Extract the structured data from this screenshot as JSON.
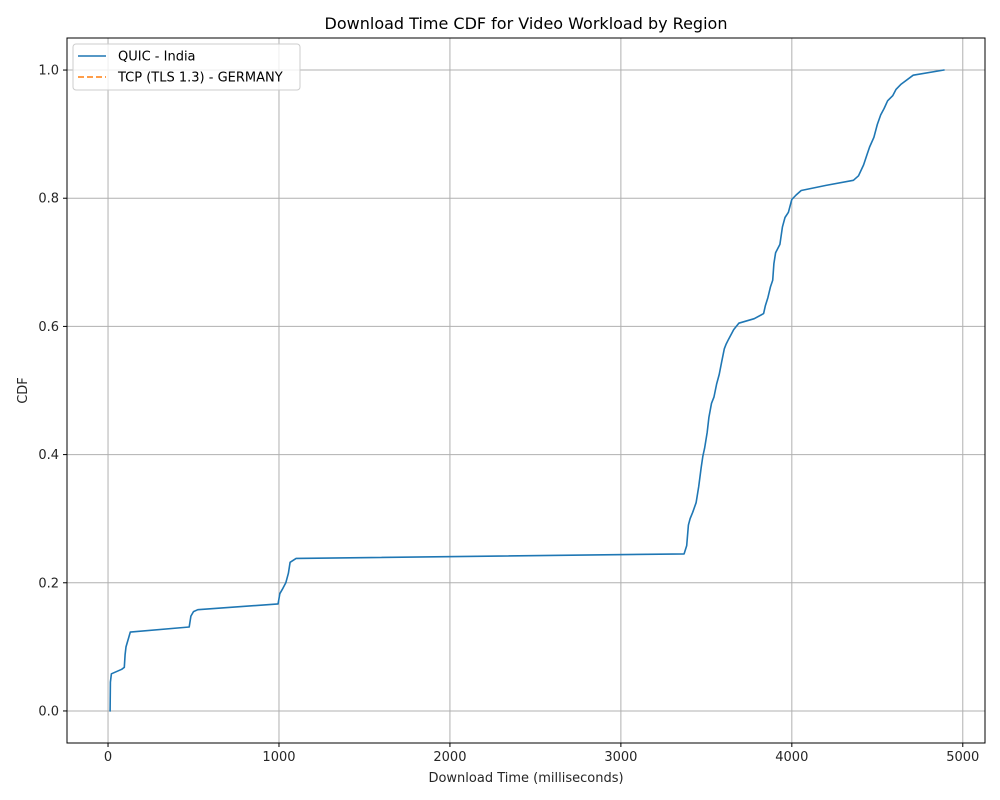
{
  "chart_data": {
    "type": "line",
    "title": "Download Time CDF for Video Workload by Region",
    "xlabel": "Download Time (milliseconds)",
    "ylabel": "CDF",
    "xlim": [
      -240,
      5130
    ],
    "ylim": [
      -0.05,
      1.05
    ],
    "xticks": [
      0,
      1000,
      2000,
      3000,
      4000,
      5000
    ],
    "xtick_labels": [
      "0",
      "1000",
      "2000",
      "3000",
      "4000",
      "5000"
    ],
    "yticks": [
      0.0,
      0.2,
      0.4,
      0.6,
      0.8,
      1.0
    ],
    "ytick_labels": [
      "0.0",
      "0.2",
      "0.4",
      "0.6",
      "0.8",
      "1.0"
    ],
    "grid": true,
    "legend_position": "top-left",
    "series": [
      {
        "name": "QUIC - India",
        "color": "#1f77b4",
        "style": "solid",
        "x": [
          12,
          14,
          20,
          80,
          95,
          100,
          105,
          130,
          475,
          485,
          500,
          525,
          995,
          1005,
          1020,
          1040,
          1055,
          1065,
          1100,
          3370,
          3385,
          3395,
          3405,
          3420,
          3440,
          3455,
          3470,
          3480,
          3490,
          3505,
          3515,
          3530,
          3545,
          3560,
          3575,
          3590,
          3605,
          3615,
          3630,
          3660,
          3690,
          3780,
          3835,
          3845,
          3860,
          3875,
          3888,
          3895,
          3905,
          3930,
          3945,
          3960,
          3980,
          4000,
          4025,
          4055,
          4200,
          4360,
          4390,
          4420,
          4440,
          4455,
          4480,
          4500,
          4520,
          4540,
          4560,
          4590,
          4610,
          4640,
          4710,
          4890
        ],
        "y": [
          0.0,
          0.045,
          0.058,
          0.065,
          0.068,
          0.088,
          0.1,
          0.123,
          0.131,
          0.148,
          0.155,
          0.158,
          0.167,
          0.183,
          0.19,
          0.2,
          0.215,
          0.232,
          0.238,
          0.245,
          0.258,
          0.29,
          0.3,
          0.31,
          0.325,
          0.35,
          0.38,
          0.398,
          0.41,
          0.435,
          0.458,
          0.48,
          0.49,
          0.51,
          0.525,
          0.545,
          0.565,
          0.572,
          0.58,
          0.595,
          0.605,
          0.612,
          0.62,
          0.632,
          0.645,
          0.662,
          0.672,
          0.698,
          0.715,
          0.728,
          0.755,
          0.77,
          0.778,
          0.798,
          0.805,
          0.812,
          0.82,
          0.828,
          0.835,
          0.852,
          0.868,
          0.88,
          0.895,
          0.915,
          0.93,
          0.94,
          0.952,
          0.96,
          0.97,
          0.978,
          0.992,
          1.0
        ]
      },
      {
        "name": "TCP (TLS 1.3) - GERMANY",
        "color": "#ff7f0e",
        "style": "dashed",
        "x": [],
        "y": []
      }
    ]
  }
}
